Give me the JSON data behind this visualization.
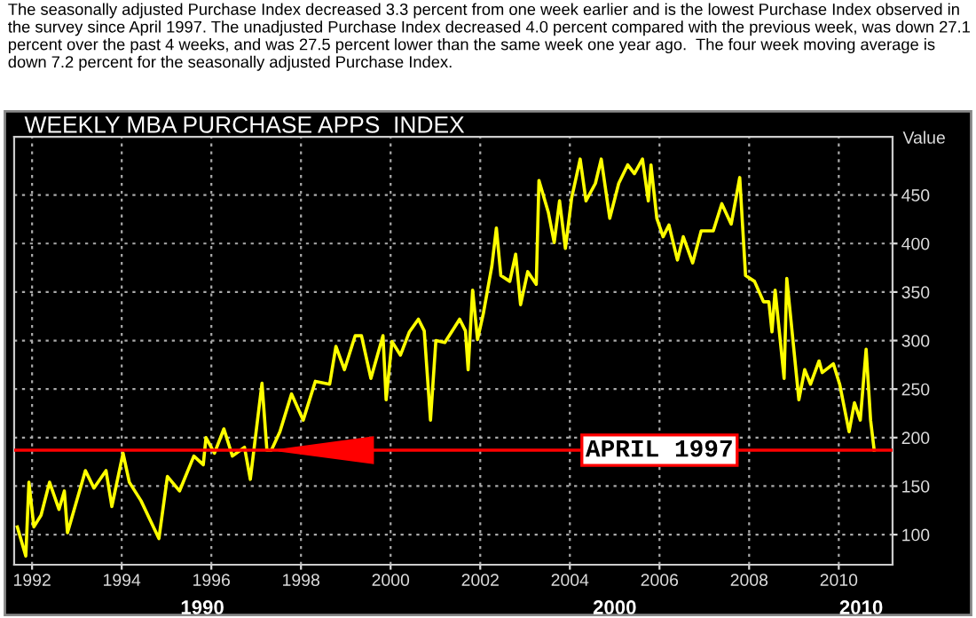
{
  "chart_data": {
    "type": "line",
    "title": "WEEKLY MBA PURCHASE APPS  INDEX",
    "ylabel": "Value",
    "annotations": [
      "The seasonally adjusted Purchase Index decreased 3.3 percent from one week earlier and is the lowest Purchase Index observed in the survey since April 1997. The unadjusted Purchase Index decreased 4.0 percent compared with the previous week, was down 27.1 percent over the past 4 weeks, and was 27.5 percent lower than the same week one year ago.  The four week moving average is down 7.2 percent for the seasonally adjusted Purchase Index.",
      "1990",
      "2000",
      "2010"
    ],
    "series": [
      {
        "color": "#ffff00",
        "x": [
          1991.67,
          1991.86,
          1991.93,
          1992.04,
          1992.2,
          1992.39,
          1992.6,
          1992.72,
          1992.79,
          1993.19,
          1993.38,
          1993.65,
          1993.78,
          1994.03,
          1994.17,
          1994.43,
          1994.83,
          1995.02,
          1995.29,
          1995.61,
          1995.82,
          1995.88,
          1996.07,
          1996.28,
          1996.47,
          1996.74,
          1996.87,
          1997.13,
          1997.24,
          1997.34,
          1997.53,
          1997.79,
          1998.05,
          1998.32,
          1998.64,
          1998.78,
          1998.97,
          1999.21,
          1999.35,
          1999.56,
          1999.83,
          1999.9,
          2000.03,
          2000.22,
          2000.42,
          2000.62,
          2000.75,
          2000.89,
          2001.01,
          2001.21,
          2001.54,
          2001.67,
          2001.73,
          2001.83,
          2001.94,
          2002.07,
          2002.26,
          2002.36,
          2002.46,
          2002.66,
          2002.79,
          2002.9,
          2003.06,
          2003.25,
          2003.31,
          2003.52,
          2003.65,
          2003.77,
          2003.9,
          2004.04,
          2004.23,
          2004.36,
          2004.57,
          2004.7,
          2004.89,
          2005.09,
          2005.29,
          2005.44,
          2005.62,
          2005.75,
          2005.81,
          2005.94,
          2006.08,
          2006.21,
          2006.4,
          2006.53,
          2006.74,
          2006.93,
          2007.2,
          2007.39,
          2007.6,
          2007.79,
          2007.92,
          2008.12,
          2008.32,
          2008.44,
          2008.51,
          2008.58,
          2008.78,
          2008.84,
          2009.11,
          2009.24,
          2009.37,
          2009.56,
          2009.63,
          2009.88,
          2010.02,
          2010.23,
          2010.35,
          2010.48,
          2010.61,
          2010.71,
          2010.79
        ],
        "values": [
          108,
          78,
          154,
          108,
          120,
          154,
          126,
          145,
          102,
          166,
          148,
          166,
          129,
          184,
          154,
          135,
          96,
          160,
          145,
          181,
          172,
          200,
          184,
          209,
          181,
          190,
          157,
          256,
          187,
          187,
          206,
          245,
          218,
          258,
          255,
          294,
          270,
          305,
          305,
          261,
          305,
          239,
          299,
          285,
          309,
          322,
          310,
          218,
          300,
          298,
          322,
          310,
          270,
          352,
          301,
          328,
          377,
          416,
          367,
          361,
          389,
          337,
          371,
          358,
          465,
          432,
          401,
          444,
          395,
          447,
          487,
          444,
          462,
          487,
          426,
          462,
          481,
          472,
          487,
          444,
          481,
          426,
          407,
          419,
          383,
          407,
          380,
          413,
          413,
          441,
          420,
          468,
          367,
          361,
          340,
          340,
          309,
          352,
          261,
          364,
          239,
          270,
          255,
          279,
          267,
          276,
          255,
          206,
          236,
          218,
          291,
          218,
          187
        ]
      }
    ],
    "xlim": [
      1991.6,
      2011.2
    ],
    "ylim": [
      69,
      510
    ],
    "xticks": [
      1992,
      1994,
      1996,
      1998,
      2000,
      2002,
      2004,
      2006,
      2008,
      2010
    ],
    "yticks": [
      100,
      150,
      200,
      250,
      300,
      350,
      400,
      450
    ],
    "ref_lines": [
      {
        "axis": "y",
        "value": 187,
        "label": "APRIL 1997",
        "color": "#ff0000"
      }
    ],
    "grid": true,
    "line_style": "solid",
    "marker": "none"
  }
}
